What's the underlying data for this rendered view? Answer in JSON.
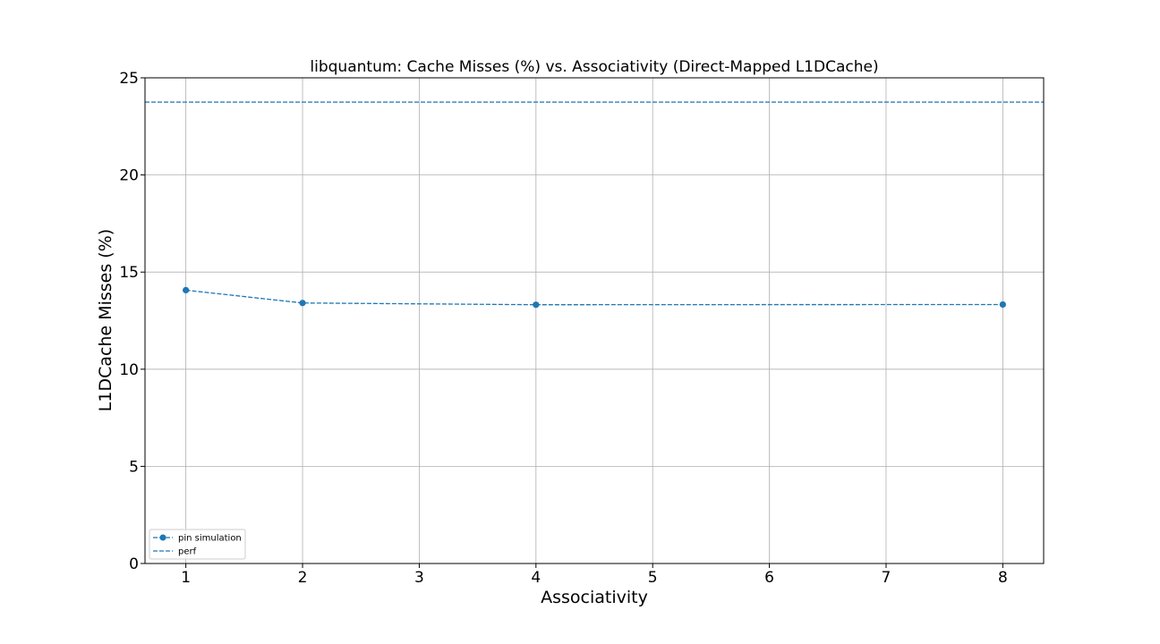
{
  "chart_data": {
    "type": "line",
    "title": "libquantum: Cache Misses (%) vs. Associativity (Direct-Mapped L1DCache)",
    "xlabel": "Associativity",
    "ylabel": "L1DCache Misses (%)",
    "xlim": [
      0.65,
      8.35
    ],
    "ylim": [
      0,
      25
    ],
    "xticks": [
      1,
      2,
      3,
      4,
      5,
      6,
      7,
      8
    ],
    "yticks": [
      0,
      5,
      10,
      15,
      20,
      25
    ],
    "grid": true,
    "legend_position": "lower-left",
    "color": "#1f77b4",
    "series": [
      {
        "name": "pin simulation",
        "style": "dashed-with-markers",
        "x": [
          1,
          2,
          4,
          8
        ],
        "y": [
          14.07,
          13.41,
          13.32,
          13.33
        ]
      },
      {
        "name": "perf",
        "style": "dashed-horizontal",
        "y": 23.75
      }
    ]
  }
}
